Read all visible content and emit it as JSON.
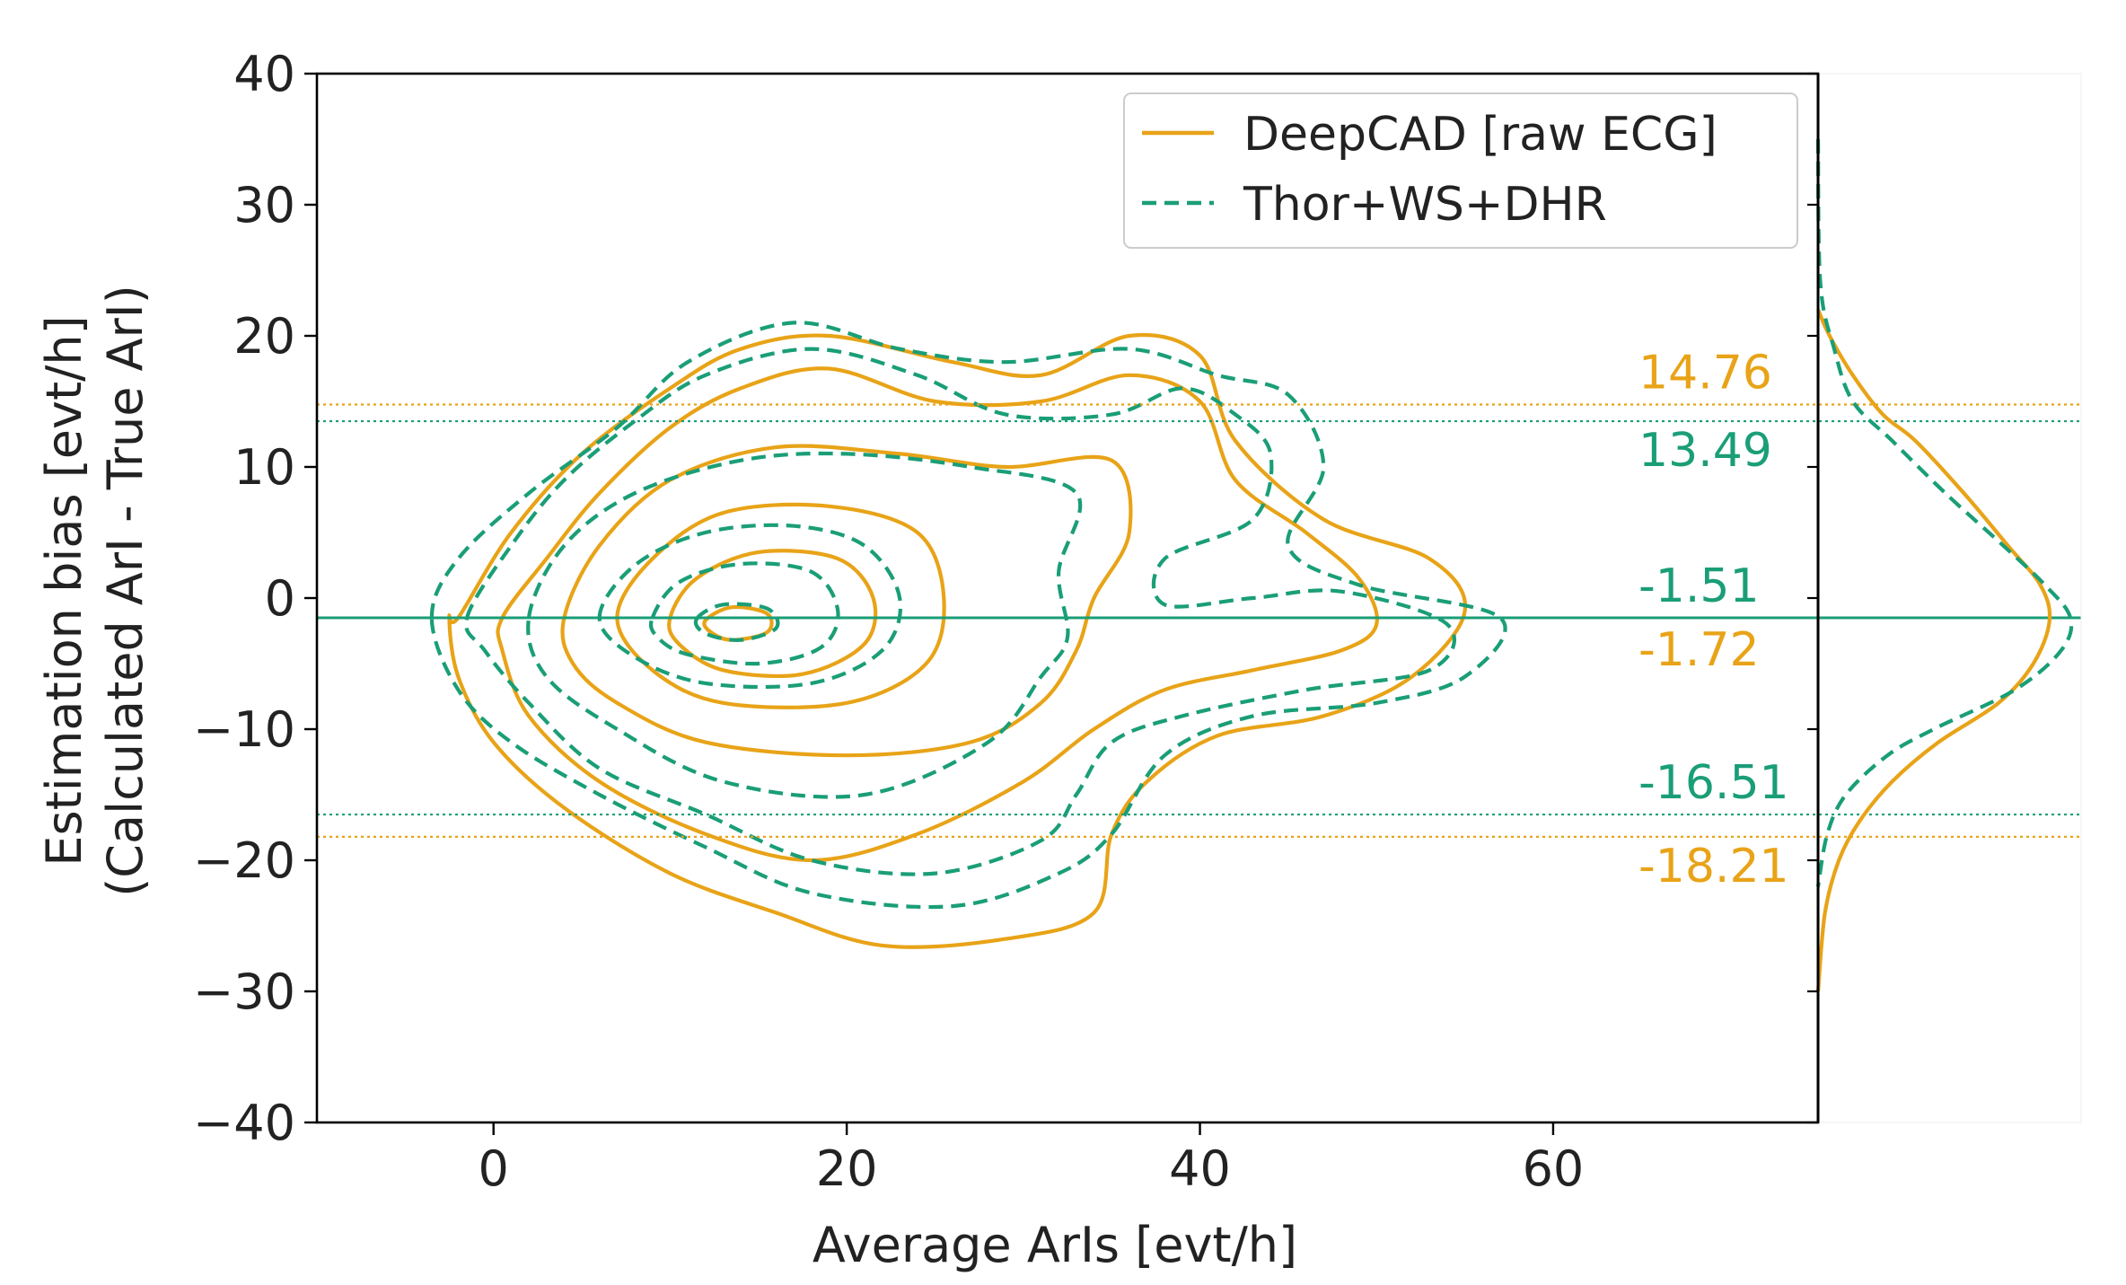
{
  "chart_data": {
    "type": "kde-contour-with-marginal",
    "title": "",
    "xlabel": "Average ArIs [evt/h]",
    "ylabel_line1": "Estimation bias [evt/h]",
    "ylabel_line2": "(Calculated ArI - True ArI)",
    "xlim": [
      -10,
      75
    ],
    "ylim": [
      -40,
      40
    ],
    "xticks": [
      0,
      20,
      40,
      60
    ],
    "xtick_labels": [
      "0",
      "20",
      "40",
      "60"
    ],
    "yticks": [
      40,
      30,
      20,
      10,
      0,
      -10,
      -20,
      -30,
      -40
    ],
    "ytick_labels": [
      "40",
      "30",
      "20",
      "10",
      "0",
      "−10",
      "−20",
      "−30",
      "−40"
    ],
    "colors": {
      "deepcad": "#E8A317",
      "thor": "#1A9E77"
    },
    "legend": {
      "placement": "top-right",
      "entries": [
        {
          "label": "DeepCAD [raw ECG]",
          "style": "solid",
          "color": "#E8A317"
        },
        {
          "label": "Thor+WS+DHR",
          "style": "dashed",
          "color": "#1A9E77"
        }
      ]
    },
    "series": [
      {
        "name": "DeepCAD [raw ECG]",
        "mean_bias": -1.72,
        "limits_of_agreement": [
          14.76,
          -18.21
        ],
        "contours": [
          [
            [
              -2,
              -1.5
            ],
            [
              1,
              5
            ],
            [
              5,
              11
            ],
            [
              10,
              16
            ],
            [
              14,
              19
            ],
            [
              19,
              20
            ],
            [
              26,
              18
            ],
            [
              31,
              17
            ],
            [
              36,
              20
            ],
            [
              40,
              18.5
            ],
            [
              42,
              12
            ],
            [
              47,
              6
            ],
            [
              53,
              3
            ],
            [
              55,
              -1
            ],
            [
              52,
              -6
            ],
            [
              47,
              -9
            ],
            [
              41,
              -10.5
            ],
            [
              37,
              -14
            ],
            [
              35,
              -18
            ],
            [
              34,
              -24
            ],
            [
              29,
              -26
            ],
            [
              22,
              -26.5
            ],
            [
              16,
              -24
            ],
            [
              10,
              -21
            ],
            [
              4,
              -16
            ],
            [
              0,
              -11
            ],
            [
              -2,
              -6
            ],
            [
              -2.5,
              -1.5
            ]
          ],
          [
            [
              0.5,
              -1.5
            ],
            [
              3,
              3
            ],
            [
              6,
              8
            ],
            [
              10,
              13
            ],
            [
              14,
              16
            ],
            [
              19,
              17.5
            ],
            [
              25,
              15
            ],
            [
              31,
              15
            ],
            [
              36,
              17
            ],
            [
              40,
              15
            ],
            [
              42,
              9
            ],
            [
              46,
              5
            ],
            [
              49,
              1.5
            ],
            [
              50,
              -2
            ],
            [
              48,
              -4
            ],
            [
              43,
              -5.5
            ],
            [
              38,
              -7
            ],
            [
              34,
              -10
            ],
            [
              30,
              -14
            ],
            [
              24,
              -18
            ],
            [
              18,
              -20
            ],
            [
              12,
              -18
            ],
            [
              6,
              -14
            ],
            [
              2,
              -9
            ],
            [
              0.5,
              -4
            ]
          ],
          [
            [
              4,
              -1.5
            ],
            [
              6,
              4
            ],
            [
              10,
              9
            ],
            [
              16,
              11.5
            ],
            [
              23,
              11
            ],
            [
              29,
              10
            ],
            [
              35,
              10.5
            ],
            [
              36,
              5
            ],
            [
              34,
              0
            ],
            [
              33,
              -4
            ],
            [
              31,
              -8
            ],
            [
              27,
              -11
            ],
            [
              20,
              -12
            ],
            [
              12,
              -11
            ],
            [
              7,
              -8
            ],
            [
              4.5,
              -5
            ]
          ],
          [
            [
              7,
              -1.5
            ],
            [
              9,
              3
            ],
            [
              13,
              6.5
            ],
            [
              19,
              7
            ],
            [
              24,
              5
            ],
            [
              25.5,
              0
            ],
            [
              24.5,
              -5
            ],
            [
              20,
              -8
            ],
            [
              13,
              -8
            ],
            [
              9,
              -5.5
            ]
          ],
          [
            [
              10,
              -1.5
            ],
            [
              11.5,
              1.5
            ],
            [
              15,
              3.5
            ],
            [
              19.5,
              3
            ],
            [
              21.5,
              0
            ],
            [
              21,
              -3.5
            ],
            [
              17.5,
              -5.8
            ],
            [
              13,
              -5.5
            ],
            [
              10.5,
              -3.5
            ]
          ],
          [
            [
              12,
              -1.7
            ],
            [
              13.5,
              -0.7
            ],
            [
              15.5,
              -1.2
            ],
            [
              15.5,
              -2.6
            ],
            [
              13.5,
              -3.2
            ],
            [
              12.3,
              -2.6
            ]
          ]
        ]
      },
      {
        "name": "Thor+WS+DHR",
        "mean_bias": -1.51,
        "limits_of_agreement": [
          13.49,
          -16.51
        ],
        "contours": [
          [
            [
              -3.5,
              -1.5
            ],
            [
              -2,
              3
            ],
            [
              2,
              8
            ],
            [
              7,
              13
            ],
            [
              11,
              18
            ],
            [
              17,
              21
            ],
            [
              23,
              19
            ],
            [
              29,
              18
            ],
            [
              36,
              19
            ],
            [
              41,
              17
            ],
            [
              45,
              15.5
            ],
            [
              47,
              10
            ],
            [
              45,
              4
            ],
            [
              49,
              1
            ],
            [
              57,
              -1.5
            ],
            [
              55,
              -6
            ],
            [
              50,
              -8
            ],
            [
              43,
              -9
            ],
            [
              38,
              -12
            ],
            [
              35,
              -18
            ],
            [
              32,
              -21
            ],
            [
              26,
              -23.5
            ],
            [
              18,
              -22.5
            ],
            [
              12,
              -19
            ],
            [
              6,
              -15
            ],
            [
              1,
              -11
            ],
            [
              -2,
              -7
            ]
          ],
          [
            [
              -1.5,
              -1.5
            ],
            [
              1,
              4
            ],
            [
              4,
              9
            ],
            [
              8,
              13.5
            ],
            [
              12,
              17
            ],
            [
              18,
              19
            ],
            [
              24,
              17
            ],
            [
              29,
              14
            ],
            [
              35,
              14
            ],
            [
              39,
              16
            ],
            [
              42,
              14
            ],
            [
              44,
              11
            ],
            [
              43,
              6
            ],
            [
              38,
              3
            ],
            [
              38,
              -0.5
            ],
            [
              43,
              0
            ],
            [
              48,
              0.5
            ],
            [
              54,
              -2
            ],
            [
              53,
              -5.5
            ],
            [
              46,
              -7
            ],
            [
              39,
              -9
            ],
            [
              35,
              -11
            ],
            [
              33,
              -15
            ],
            [
              31,
              -18.5
            ],
            [
              25,
              -21
            ],
            [
              18,
              -20
            ],
            [
              12,
              -16.5
            ],
            [
              6,
              -13
            ],
            [
              2,
              -8
            ],
            [
              -0.5,
              -4
            ]
          ],
          [
            [
              2,
              -1.5
            ],
            [
              4,
              4
            ],
            [
              8,
              8
            ],
            [
              14,
              10.5
            ],
            [
              20,
              11
            ],
            [
              27,
              10
            ],
            [
              33,
              8
            ],
            [
              32,
              2
            ],
            [
              32.5,
              -3
            ],
            [
              31,
              -6
            ],
            [
              28,
              -11
            ],
            [
              21,
              -15
            ],
            [
              13,
              -14
            ],
            [
              7,
              -10
            ],
            [
              3,
              -6
            ]
          ],
          [
            [
              6,
              -1.5
            ],
            [
              8,
              2.5
            ],
            [
              12,
              5
            ],
            [
              17,
              5.5
            ],
            [
              21,
              4
            ],
            [
              23,
              0
            ],
            [
              22,
              -4
            ],
            [
              18,
              -6.5
            ],
            [
              12,
              -6.5
            ],
            [
              8,
              -4.5
            ]
          ],
          [
            [
              9,
              -1.5
            ],
            [
              10.5,
              1.2
            ],
            [
              14,
              2.6
            ],
            [
              18,
              2
            ],
            [
              19.5,
              -1
            ],
            [
              18.5,
              -3.8
            ],
            [
              15,
              -5
            ],
            [
              11,
              -4.3
            ],
            [
              9.3,
              -3
            ]
          ],
          [
            [
              11.5,
              -1.6
            ],
            [
              13,
              -0.5
            ],
            [
              15.5,
              -0.8
            ],
            [
              16,
              -2.3
            ],
            [
              14,
              -3.2
            ],
            [
              12,
              -2.7
            ]
          ]
        ]
      }
    ],
    "marginal": {
      "axis": "y",
      "series": [
        {
          "name": "DeepCAD [raw ECG]",
          "curve": [
            [
              22,
              0.0
            ],
            [
              20,
              0.05
            ],
            [
              17,
              0.15
            ],
            [
              14,
              0.28
            ],
            [
              12,
              0.42
            ],
            [
              8,
              0.63
            ],
            [
              4,
              0.82
            ],
            [
              1,
              0.96
            ],
            [
              -1.7,
              1.0
            ],
            [
              -5,
              0.93
            ],
            [
              -8,
              0.78
            ],
            [
              -11,
              0.52
            ],
            [
              -14,
              0.32
            ],
            [
              -17,
              0.18
            ],
            [
              -20,
              0.09
            ],
            [
              -24,
              0.03
            ],
            [
              -30,
              0.0
            ]
          ]
        },
        {
          "name": "Thor+WS+DHR",
          "curve": [
            [
              35,
              0.0
            ],
            [
              24,
              0.01
            ],
            [
              19,
              0.07
            ],
            [
              15,
              0.15
            ],
            [
              12,
              0.32
            ],
            [
              8,
              0.55
            ],
            [
              4,
              0.8
            ],
            [
              1,
              0.98
            ],
            [
              -1.5,
              1.09
            ],
            [
              -4,
              1.05
            ],
            [
              -7,
              0.85
            ],
            [
              -10,
              0.5
            ],
            [
              -12,
              0.3
            ],
            [
              -15,
              0.12
            ],
            [
              -18,
              0.04
            ],
            [
              -22,
              0.0
            ]
          ]
        }
      ]
    },
    "annotations": [
      {
        "text": "14.76",
        "y": 14.76,
        "color": "#E8A317",
        "position": "above-line"
      },
      {
        "text": "13.49",
        "y": 13.49,
        "color": "#1A9E77",
        "position": "below-line"
      },
      {
        "text": "-1.51",
        "y": -1.51,
        "color": "#1A9E77",
        "position": "above-line"
      },
      {
        "text": "-1.72",
        "y": -1.72,
        "color": "#E8A317",
        "position": "below-line"
      },
      {
        "text": "-16.51",
        "y": -16.51,
        "color": "#1A9E77",
        "position": "above-line"
      },
      {
        "text": "-18.21",
        "y": -18.21,
        "color": "#E8A317",
        "position": "below-line"
      }
    ]
  }
}
